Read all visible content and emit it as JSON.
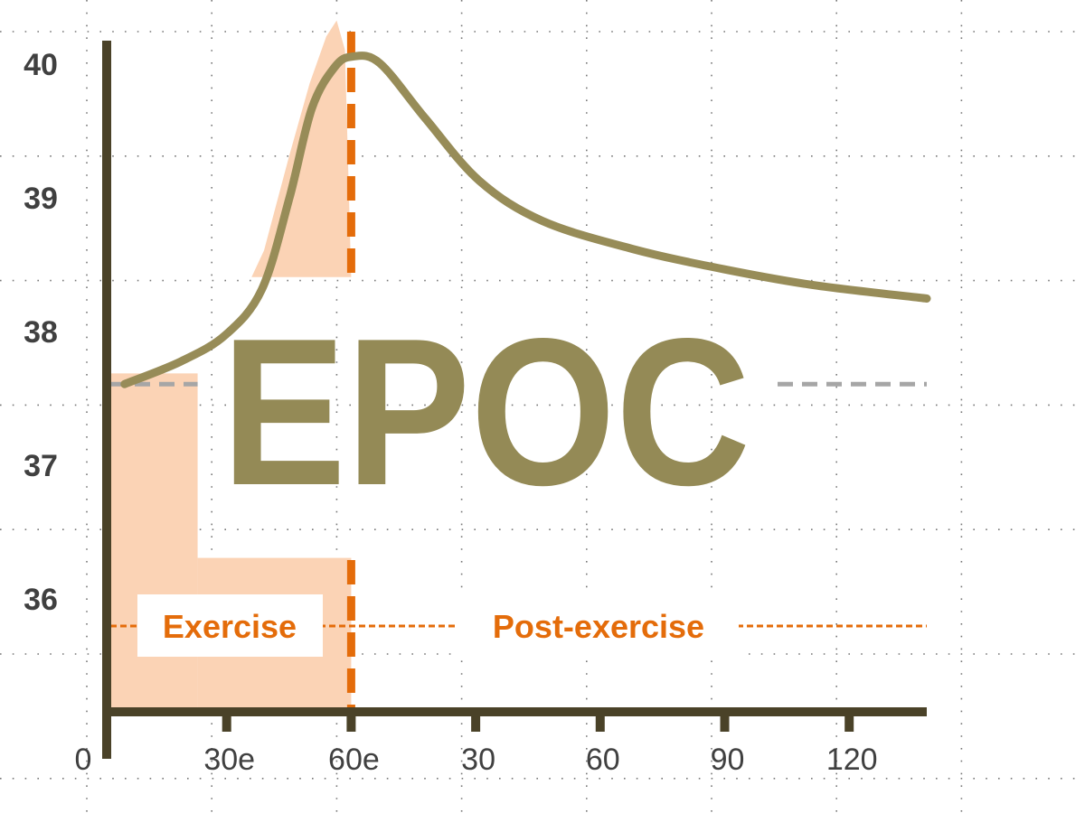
{
  "chart_data": {
    "type": "line",
    "title": "EPOC",
    "xlabel": "",
    "ylabel": "",
    "x_unit_note": "",
    "xlim": [
      0,
      198
    ],
    "ylim": [
      35.15,
      40.25
    ],
    "grid": "dotted",
    "x_ticks": [
      {
        "value": 30,
        "label": "30e"
      },
      {
        "value": 60,
        "label": "60e"
      },
      {
        "value": 90,
        "label": "30"
      },
      {
        "value": 120,
        "label": "60"
      },
      {
        "value": 150,
        "label": "90"
      },
      {
        "value": 180,
        "label": "120"
      }
    ],
    "x_origin_label": "0",
    "y_ticks": [
      40,
      39,
      38,
      37,
      36
    ],
    "series": [
      {
        "x": [
          5.4,
          19,
          29.8,
          38.5,
          45.1,
          50.5,
          56,
          60.3,
          66.9,
          77.8,
          90.9,
          106.1,
          127.9,
          149.7,
          171.5,
          198.7
        ],
        "y": [
          37.6,
          37.77,
          37.97,
          38.31,
          38.99,
          39.66,
          39.97,
          40.05,
          40.0,
          39.59,
          39.12,
          38.82,
          38.61,
          38.46,
          38.34,
          38.24
        ]
      }
    ],
    "baseline": 37.6,
    "exercise_end": 60,
    "shaded_regions": [
      {
        "x": [
          2,
          23
        ],
        "y": [
          35.15,
          37.68
        ]
      },
      {
        "x": [
          23,
          60
        ],
        "y": [
          35.15,
          36.3
        ]
      }
    ],
    "shaded_peak": {
      "x": [
        36,
        39,
        45,
        50,
        54,
        56.5,
        58.5,
        60
      ],
      "y": [
        38.4,
        38.6,
        39.3,
        39.85,
        40.2,
        40.32,
        40.1,
        38.4
      ]
    },
    "annotations": {
      "exercise": "Exercise",
      "post_exercise": "Post-exercise"
    },
    "colors": {
      "curve": "#978c58",
      "axis": "#4a4228",
      "shade": "#fbd3b5",
      "divider": "#e46c0a",
      "baseline": "#a6a6a6",
      "tick_label": "#404040",
      "title": "#948a56"
    }
  }
}
